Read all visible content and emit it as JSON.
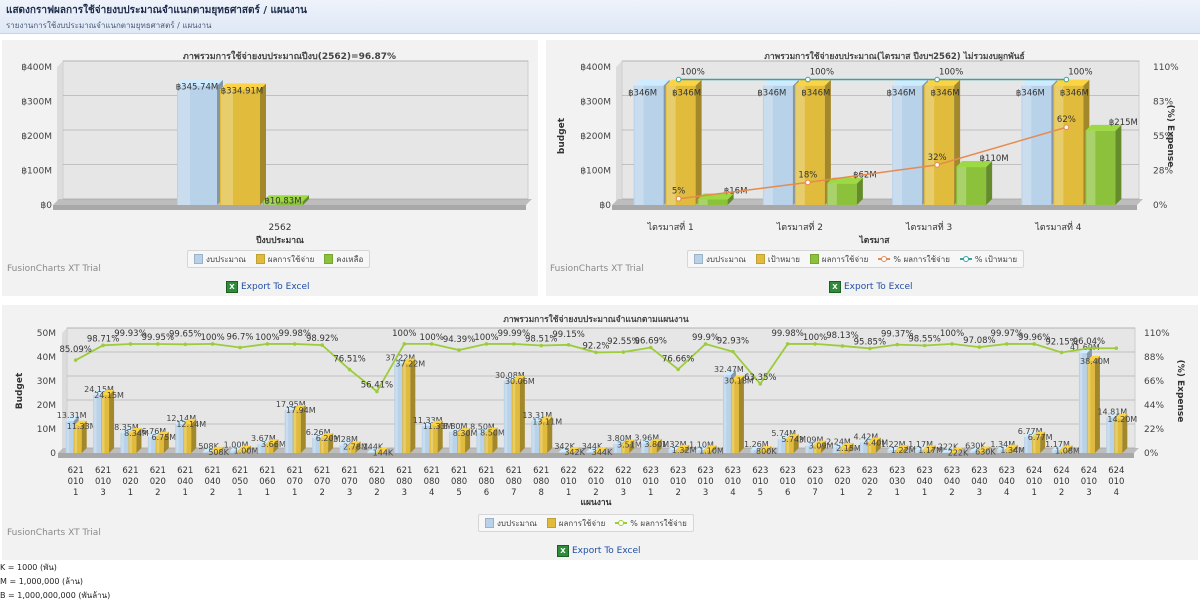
{
  "header": {
    "title": "แสดงกราฟผลการใช้จ่ายงบประมาณจำแนกตามยุทธศาสตร์ / แผนงาน",
    "subtitle": "รายงานการใช้งบประมาณจำแนกตามยุทธศาสตร์ / แผนงาน"
  },
  "colors": {
    "budget": "#b8d2ea",
    "spent": "#e1bc3c",
    "remaining": "#8cc23b",
    "target": "#e9a03a",
    "pct_spent": "#e68a4f",
    "pct_target": "#3aa3a0",
    "line_green": "#9ccc3c"
  },
  "trial_text": "FusionCharts XT Trial",
  "export_label": "Export To Excel",
  "chart_data": [
    {
      "type": "bar",
      "title": "ภาพรวมการใช้จ่ายงบประมาณปีงบ(2562)=96.87%",
      "xlabel": "ปีงบประมาณ",
      "ylabel": "",
      "categories": [
        "2562"
      ],
      "ylim": [
        0,
        400
      ],
      "yticks": [
        "฿0",
        "฿100M",
        "฿200M",
        "฿300M",
        "฿400M"
      ],
      "series": [
        {
          "name": "งบประมาณ",
          "values": [
            345.74
          ],
          "labels": [
            "฿345.74M"
          ]
        },
        {
          "name": "ผลการใช้จ่าย",
          "values": [
            334.91
          ],
          "labels": [
            "฿334.91M"
          ]
        },
        {
          "name": "คงเหลือ",
          "values": [
            10.83
          ],
          "labels": [
            "฿10.83M"
          ]
        }
      ]
    },
    {
      "type": "bar",
      "title": "ภาพรวมการใช้จ่ายงบประมาณ(ไตรมาส ปีงบฯ2562) ไม่รวมงบผูกพันธ์",
      "xlabel": "ไตรมาส",
      "ylabel": "budget",
      "y2label": "(%) Expense",
      "categories": [
        "ไตรมาสที่ 1",
        "ไตรมาสที่ 2",
        "ไตรมาสที่ 3",
        "ไตรมาสที่ 4"
      ],
      "ylim": [
        0,
        400
      ],
      "yticks": [
        "฿0",
        "฿100M",
        "฿200M",
        "฿300M",
        "฿400M"
      ],
      "y2ticks": [
        "0%",
        "28%",
        "55%",
        "83%",
        "110%"
      ],
      "series": [
        {
          "name": "งบประมาณ",
          "values": [
            346,
            346,
            346,
            346
          ],
          "labels": [
            "฿346M",
            "฿346M",
            "฿346M",
            "฿346M"
          ]
        },
        {
          "name": "เป้าหมาย",
          "values": [
            346,
            346,
            346,
            346
          ],
          "labels": [
            "฿346M",
            "฿346M",
            "฿346M",
            "฿346M"
          ]
        },
        {
          "name": "ผลการใช้จ่าย",
          "values": [
            16,
            62,
            110,
            215
          ],
          "labels": [
            "฿16M",
            "฿62M",
            "฿110M",
            "฿215M"
          ]
        }
      ],
      "lines": [
        {
          "name": "% ผลการใช้จ่าย",
          "values": [
            5,
            18,
            32,
            62
          ],
          "labels": [
            "5%",
            "18%",
            "32%",
            "62%"
          ]
        },
        {
          "name": "% เป้าหมาย",
          "values": [
            100,
            100,
            100,
            100
          ],
          "labels": [
            "100%",
            "100%",
            "100%",
            "100%"
          ]
        }
      ]
    },
    {
      "type": "bar",
      "title": "ภาพรวมการใช้จ่ายงบประมาณจำแนกตามแผนงาน",
      "xlabel": "แผนงาน",
      "ylabel": "Budget",
      "y2label": "(%) Expense",
      "ylim": [
        0,
        50
      ],
      "yticks": [
        "0",
        "10M",
        "20M",
        "30M",
        "40M",
        "50M"
      ],
      "y2ticks": [
        "0%",
        "22%",
        "44%",
        "66%",
        "88%",
        "110%"
      ],
      "categories": [
        "6210101",
        "6210103",
        "6210201",
        "6210202",
        "6210401",
        "6210402",
        "6210501",
        "6210601",
        "6210701",
        "6210702",
        "6210703",
        "6210802",
        "6210803",
        "6210804",
        "6210805",
        "6210806",
        "6210807",
        "6210808",
        "6220101",
        "6220102",
        "6220103",
        "6230101",
        "6230102",
        "6230103",
        "6230104",
        "6230105",
        "6230106",
        "6230107",
        "6230201",
        "6230202",
        "6230301",
        "6230401",
        "6230402",
        "6230403",
        "6230404",
        "6240101",
        "6240102",
        "6240103",
        "6240104"
      ],
      "series": [
        {
          "name": "งบประมาณ",
          "values": [
            13.31,
            24.15,
            8.35,
            6.76,
            12.14,
            0.5,
            1.0,
            3.67,
            17.95,
            6.26,
            3.28,
            0.14,
            37.22,
            11.33,
            8.8,
            8.5,
            30.08,
            13.31,
            0.34,
            0.34,
            3.8,
            3.96,
            1.32,
            1.1,
            32.47,
            1.26,
            5.74,
            3.09,
            2.24,
            4.42,
            1.22,
            1.17,
            0.22,
            0.63,
            1.34,
            6.77,
            1.17,
            41.69,
            14.81
          ],
          "labels": [
            "13.31M",
            "24.15M",
            "8.35M",
            "6.76M",
            "12.14M",
            "508K",
            "1.00M",
            "3.67M",
            "17.95M",
            "6.26M",
            "3.28M",
            "144K",
            "37.22M",
            "11.33M",
            "8.80M",
            "8.50M",
            "30.08M",
            "13.31M",
            "342K",
            "344K",
            "3.80M",
            "3.96M",
            "1.32M",
            "1.10M",
            "32.47M",
            "1.26M",
            "5.74M",
            "3.09M",
            "2.24M",
            "4.42M",
            "1.22M",
            "1.17M",
            "222K",
            "630K",
            "1.34M",
            "6.77M",
            "1.17M",
            "41.69M",
            "14.81M"
          ]
        },
        {
          "name": "ผลการใช้จ่าย",
          "values": [
            11.33,
            24.15,
            8.34,
            6.75,
            12.14,
            0.5,
            1.0,
            3.66,
            17.94,
            6.2,
            2.78,
            0.14,
            37.22,
            11.33,
            8.3,
            8.5,
            30.06,
            13.11,
            0.34,
            0.34,
            3.51,
            3.8,
            1.32,
            1.1,
            30.18,
            0.8,
            5.74,
            3.09,
            2.15,
            4.4,
            1.22,
            1.17,
            0.22,
            0.63,
            1.34,
            6.77,
            1.08,
            38.4,
            14.2
          ],
          "labels": [
            "11.33M",
            "24.15M",
            "8.34M",
            "6.75M",
            "12.14M",
            "508K",
            "1.00M",
            "3.66M",
            "17.94M",
            "6.20M",
            "2.78M",
            "144K",
            "37.22M",
            "11.33M",
            "8.30M",
            "8.50M",
            "30.06M",
            "13.11M",
            "342K",
            "344K",
            "3.51M",
            "3.80M",
            "1.32M",
            "1.10M",
            "30.18M",
            "800K",
            "5.74M",
            "3.09M",
            "2.15M",
            "4.40M",
            "1.22M",
            "1.17M",
            "222K",
            "630K",
            "1.34M",
            "6.77M",
            "1.08M",
            "38.40M",
            "14.20M"
          ]
        }
      ],
      "lines": [
        {
          "name": "% ผลการใช้จ่าย",
          "values": [
            85.09,
            98.71,
            99.93,
            99.95,
            99.65,
            100,
            96.7,
            100,
            99.98,
            98.92,
            76.51,
            56.41,
            100,
            100,
            94.39,
            100,
            99.99,
            98.51,
            99.15,
            92.2,
            92.55,
            96.69,
            76.66,
            99.9,
            92.93,
            63.35,
            99.98,
            100,
            98.13,
            95.85,
            99.37,
            98.55,
            100,
            97.08,
            99.97,
            99.96,
            92.15,
            96.04,
            96.04
          ],
          "labels": [
            "85.09%",
            "98.71%",
            "99.93%",
            "99.95%",
            "99.65%",
            "100%",
            "96.7%",
            "100%",
            "99.98%",
            "98.92%",
            "76.51%",
            "56.41%",
            "100%",
            "100%",
            "94.39%",
            "100%",
            "99.99%",
            "98.51%",
            "99.15%",
            "92.2%",
            "92.55%",
            "96.69%",
            "76.66%",
            "99.9%",
            "92.93%",
            "63.35%",
            "99.98%",
            "100%",
            "98.13%",
            "95.85%",
            "99.37%",
            "98.55%",
            "100%",
            "97.08%",
            "99.97%",
            "99.96%",
            "92.15%",
            "96.04%",
            ""
          ]
        }
      ]
    }
  ],
  "legends": {
    "c1": [
      "งบประมาณ",
      "ผลการใช้จ่าย",
      "คงเหลือ"
    ],
    "c2": [
      "งบประมาณ",
      "เป้าหมาย",
      "ผลการใช้จ่าย",
      "% ผลการใช้จ่าย",
      "% เป้าหมาย"
    ],
    "c3": [
      "งบประมาณ",
      "ผลการใช้จ่าย",
      "% ผลการใช้จ่าย"
    ]
  },
  "notes": [
    "K = 1000 (พัน)",
    "M = 1,000,000 (ล้าน)",
    "B = 1,000,000,000 (พันล้าน)"
  ]
}
